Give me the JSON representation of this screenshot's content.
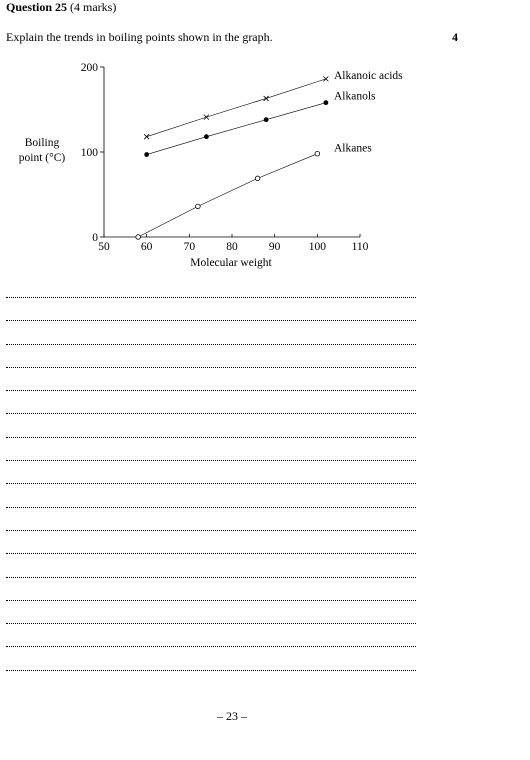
{
  "question": {
    "number_label": "Question 25",
    "marks_label": "(4 marks)",
    "prompt": "Explain the trends in boiling points shown in the graph.",
    "marks_value": "4"
  },
  "chart_data": {
    "type": "line",
    "xlabel": "Molecular weight",
    "ylabel_lines": [
      "Boiling",
      "point (°C)"
    ],
    "xlim": [
      50,
      110
    ],
    "ylim": [
      0,
      200
    ],
    "x_ticks": [
      50,
      60,
      70,
      80,
      90,
      100,
      110
    ],
    "y_ticks": [
      0,
      100,
      200
    ],
    "grid": false,
    "legend": "labels at line ends",
    "series": [
      {
        "name": "Alkanoic acids",
        "marker": "cross",
        "x": [
          60,
          74,
          88,
          102
        ],
        "y": [
          118,
          141,
          163,
          186
        ]
      },
      {
        "name": "Alkanols",
        "marker": "filled-circle",
        "x": [
          60,
          74,
          88,
          102
        ],
        "y": [
          97,
          118,
          138,
          158
        ]
      },
      {
        "name": "Alkanes",
        "marker": "open-circle",
        "x": [
          58,
          72,
          86,
          100
        ],
        "y": [
          0,
          36,
          69,
          98
        ]
      }
    ]
  },
  "answer_line_count": 17,
  "page_number": "– 23 –"
}
